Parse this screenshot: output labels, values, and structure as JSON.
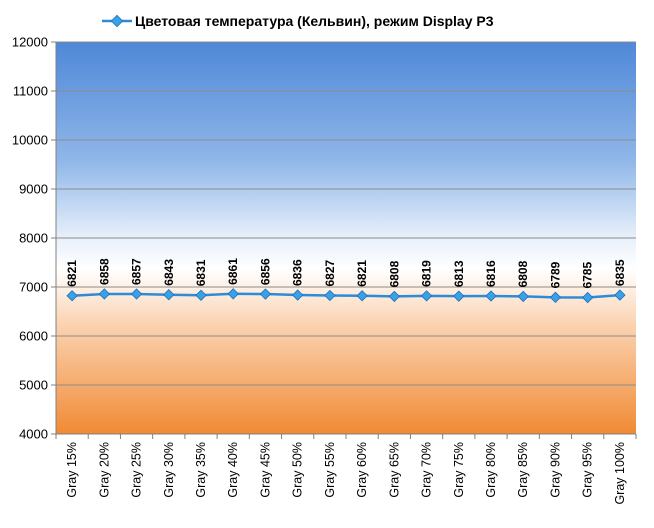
{
  "chart_data": {
    "type": "line",
    "title": "",
    "xlabel": "",
    "ylabel": "",
    "ylim": [
      4000,
      12000
    ],
    "yticks": [
      4000,
      5000,
      6000,
      7000,
      8000,
      9000,
      10000,
      11000,
      12000
    ],
    "grid": true,
    "legend_position": "top",
    "categories": [
      "Gray 15%",
      "Gray 20%",
      "Gray 25%",
      "Gray 30%",
      "Gray 35%",
      "Gray 40%",
      "Gray 45%",
      "Gray 50%",
      "Gray 55%",
      "Gray 60%",
      "Gray 65%",
      "Gray 70%",
      "Gray 75%",
      "Gray 80%",
      "Gray 85%",
      "Gray 90%",
      "Gray 95%",
      "Gray 100%"
    ],
    "series": [
      {
        "name": "Цветовая температура (Кельвин), режим Display P3",
        "values": [
          6821,
          6858,
          6857,
          6843,
          6831,
          6861,
          6856,
          6836,
          6827,
          6821,
          6808,
          6819,
          6813,
          6816,
          6808,
          6789,
          6785,
          6835
        ],
        "color": "#2e8bd8"
      }
    ],
    "background_gradient": {
      "top": "#4a86d6",
      "middle": "#ffffff",
      "bottom": "#f0913a"
    }
  }
}
